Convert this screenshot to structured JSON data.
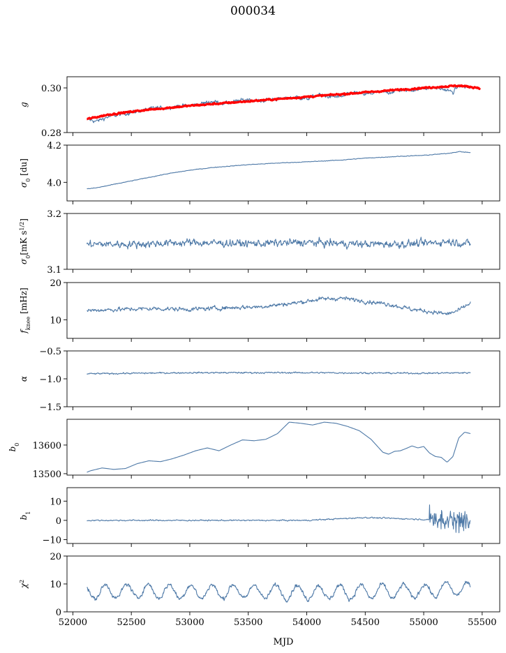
{
  "figure": {
    "title": "000034",
    "xlabel": "MJD",
    "line_color": "#4e79a7",
    "model_color": "#ff0000"
  },
  "chart_data": [
    {
      "type": "line",
      "ylabel": "g",
      "ylabel_html": "<tspan font-style='italic'>g</tspan>",
      "ylim": [
        0.28,
        0.305
      ],
      "yticks": [
        0.28,
        0.3
      ],
      "ytick_labels": [
        "0.28",
        "0.30"
      ],
      "series": [
        {
          "x": [
            52120,
            52200,
            52300,
            52400,
            52500,
            52600,
            52700,
            52800,
            52900,
            53000,
            53100,
            53200,
            53300,
            53400,
            53500,
            53600,
            53700,
            53800,
            53900,
            54000,
            54100,
            54200,
            54300,
            54400,
            54500,
            54600,
            54700,
            54800,
            54900,
            55000,
            55100,
            55200,
            55250,
            55300,
            55400
          ],
          "y": [
            0.286,
            0.285,
            0.287,
            0.288,
            0.289,
            0.29,
            0.291,
            0.291,
            0.292,
            0.292,
            0.293,
            0.294,
            0.293,
            0.294,
            0.295,
            0.294,
            0.295,
            0.295,
            0.296,
            0.295,
            0.297,
            0.296,
            0.296,
            0.298,
            0.297,
            0.298,
            0.298,
            0.299,
            0.299,
            0.3,
            0.3,
            0.299,
            0.298,
            0.301,
            0.3
          ],
          "noise": 0.0015
        },
        {
          "role": "model",
          "x": [
            52120,
            52300,
            52600,
            53000,
            53500,
            54000,
            54500,
            55000,
            55300,
            55480
          ],
          "y": [
            0.286,
            0.288,
            0.29,
            0.292,
            0.294,
            0.296,
            0.298,
            0.3,
            0.301,
            0.3
          ],
          "noise": 0.0006
        }
      ]
    },
    {
      "type": "line",
      "ylabel": "σ0 [du]",
      "ylabel_html": "<tspan font-style='italic'>σ</tspan><tspan baseline-shift='sub' font-size='8'>0</tspan> [du]",
      "ylim": [
        3.9,
        4.2
      ],
      "yticks": [
        4.0,
        4.2
      ],
      "ytick_labels": [
        "4.0",
        "4.2"
      ],
      "series": [
        {
          "x": [
            52120,
            52200,
            52400,
            52600,
            52800,
            53000,
            53200,
            53500,
            53800,
            54000,
            54300,
            54500,
            54800,
            55000,
            55200,
            55300,
            55400
          ],
          "y": [
            3.965,
            3.97,
            3.995,
            4.02,
            4.045,
            4.065,
            4.08,
            4.095,
            4.105,
            4.11,
            4.12,
            4.13,
            4.14,
            4.145,
            4.155,
            4.165,
            4.16
          ],
          "noise": 0.003
        }
      ]
    },
    {
      "type": "line",
      "ylabel": "σ0[mK s^1/2]",
      "ylabel_html": "<tspan font-style='italic'>σ</tspan><tspan baseline-shift='sub' font-size='8'>0</tspan>[mK s<tspan baseline-shift='super' font-size='8'>1/2</tspan>]",
      "ylim": [
        3.1,
        3.2
      ],
      "yticks": [
        3.1,
        3.2
      ],
      "ytick_labels": [
        "3.1",
        "3.2"
      ],
      "series": [
        {
          "x": [
            52120,
            52500,
            53000,
            53500,
            54000,
            54500,
            55000,
            55200,
            55300,
            55400
          ],
          "y": [
            3.145,
            3.145,
            3.148,
            3.146,
            3.148,
            3.145,
            3.146,
            3.15,
            3.148,
            3.145
          ],
          "noise": 0.012
        }
      ]
    },
    {
      "type": "line",
      "ylabel": "fknee [mHz]",
      "ylabel_html": "<tspan font-style='italic'>f</tspan><tspan baseline-shift='sub' font-size='8'>knee</tspan> [mHz]",
      "ylim": [
        5,
        20
      ],
      "yticks": [
        10,
        20
      ],
      "ytick_labels": [
        "10",
        "20"
      ],
      "series": [
        {
          "x": [
            52120,
            52400,
            52700,
            53000,
            53300,
            53600,
            53900,
            54100,
            54300,
            54500,
            54700,
            54900,
            55100,
            55200,
            55300,
            55400
          ],
          "y": [
            12.5,
            12.8,
            13,
            12.8,
            13.2,
            13.5,
            14.5,
            15.5,
            15.8,
            15.0,
            14.2,
            12.8,
            12.0,
            11.5,
            12.5,
            14.5
          ],
          "noise": 1.0
        }
      ]
    },
    {
      "type": "line",
      "ylabel": "α",
      "ylabel_html": "<tspan font-style='italic'>α</tspan>",
      "ylim": [
        -1.5,
        -0.5
      ],
      "yticks": [
        -1.5,
        -1.0,
        -0.5
      ],
      "ytick_labels": [
        "−1.5",
        "−1.0",
        "−0.5"
      ],
      "series": [
        {
          "x": [
            52120,
            53000,
            54000,
            55000,
            55400
          ],
          "y": [
            -0.91,
            -0.89,
            -0.89,
            -0.9,
            -0.89
          ],
          "noise": 0.025
        }
      ]
    },
    {
      "type": "line",
      "ylabel": "b0",
      "ylabel_html": "<tspan font-style='italic'>b</tspan><tspan baseline-shift='sub' font-size='8'>0</tspan>",
      "ylim": [
        13495,
        13690
      ],
      "yticks": [
        13500,
        13600
      ],
      "ytick_labels": [
        "13500",
        "13600"
      ],
      "series": [
        {
          "x": [
            52120,
            52150,
            52250,
            52350,
            52450,
            52550,
            52650,
            52750,
            52850,
            52950,
            53050,
            53150,
            53250,
            53350,
            53450,
            53550,
            53650,
            53750,
            53850,
            53950,
            54050,
            54150,
            54250,
            54350,
            54450,
            54550,
            54650,
            54700,
            54750,
            54800,
            54850,
            54900,
            54950,
            55000,
            55050,
            55100,
            55150,
            55200,
            55250,
            55300,
            55350,
            55400
          ],
          "y": [
            13505,
            13510,
            13520,
            13515,
            13518,
            13535,
            13545,
            13542,
            13552,
            13565,
            13580,
            13590,
            13580,
            13600,
            13618,
            13615,
            13620,
            13640,
            13680,
            13676,
            13670,
            13680,
            13676,
            13665,
            13650,
            13620,
            13575,
            13568,
            13578,
            13580,
            13588,
            13597,
            13590,
            13595,
            13572,
            13560,
            13557,
            13540,
            13560,
            13625,
            13645,
            13640
          ],
          "noise": 0
        }
      ]
    },
    {
      "type": "line",
      "ylabel": "b1",
      "ylabel_html": "<tspan font-style='italic'>b</tspan><tspan baseline-shift='sub' font-size='8'>1</tspan>",
      "ylim": [
        -12,
        17
      ],
      "yticks": [
        -10,
        0,
        10
      ],
      "ytick_labels": [
        "−10",
        "0",
        "10"
      ],
      "series": [
        {
          "x": [
            52120,
            53000,
            54000,
            54500,
            55000,
            55400
          ],
          "y": [
            0,
            0,
            0,
            1.5,
            0.5,
            0
          ],
          "noise": 0.6,
          "burst": {
            "from": 55050,
            "to": 55400,
            "amp": 8
          }
        }
      ]
    },
    {
      "type": "line",
      "ylabel": "χ2",
      "ylabel_html": "<tspan font-style='italic'>χ</tspan><tspan baseline-shift='super' font-size='8'>2</tspan>",
      "ylim": [
        0,
        20
      ],
      "yticks": [
        0,
        10,
        20
      ],
      "ytick_labels": [
        "0",
        "10",
        "20"
      ],
      "series": [
        {
          "x": [
            52120,
            52500,
            53000,
            53500,
            54000,
            54500,
            55000,
            55300,
            55400
          ],
          "y": [
            7,
            7.5,
            7.2,
            7.3,
            7.0,
            7.2,
            7.4,
            8.5,
            7.5
          ],
          "noise": 1.4,
          "oscillation": {
            "period": 182,
            "amp": 2.5
          }
        }
      ]
    }
  ],
  "xaxis": {
    "xlim": [
      51950,
      55650
    ],
    "ticks": [
      52000,
      52500,
      53000,
      53500,
      54000,
      54500,
      55000,
      55500
    ],
    "tick_labels": [
      "52000",
      "52500",
      "53000",
      "53500",
      "54000",
      "54500",
      "55000",
      "55500"
    ]
  }
}
